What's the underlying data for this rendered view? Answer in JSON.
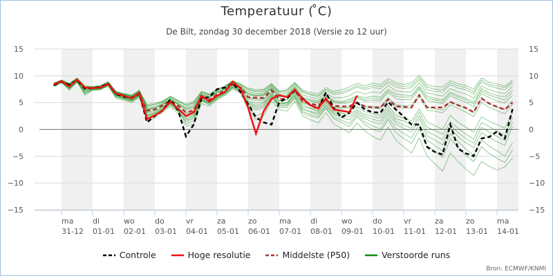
{
  "title": "Temperatuur ( ̊C)",
  "subtitle": "De Bilt, zondag 30 december 2018 (Versie zo 12 uur)",
  "source": "Bron: ECMWF/KNMI",
  "colors": {
    "controle": "#000000",
    "hoge_resolutie": "#ee1111",
    "middelste": "#aa3333",
    "verstoorde": "#118811",
    "band": "#f0f0f0",
    "grid": "#d8d8d8",
    "zero": "#777777"
  },
  "chart_data": {
    "type": "line",
    "title": "Temperatuur ( ̊C)",
    "ylim": [
      -15,
      15
    ],
    "yticks": [
      "15",
      "10",
      "5",
      "0",
      "−5",
      "−10",
      "−15"
    ],
    "ytick_values": [
      15,
      10,
      5,
      0,
      -5,
      -10,
      -15
    ],
    "x_step_hours": 6,
    "x_start": "30-12 18 uur",
    "days": [
      {
        "day": "ma",
        "date": "31-12"
      },
      {
        "day": "di",
        "date": "01-01"
      },
      {
        "day": "wo",
        "date": "02-01"
      },
      {
        "day": "do",
        "date": "03-01"
      },
      {
        "day": "vr",
        "date": "04-01"
      },
      {
        "day": "za",
        "date": "05-01"
      },
      {
        "day": "zo",
        "date": "06-01"
      },
      {
        "day": "ma",
        "date": "07-01"
      },
      {
        "day": "di",
        "date": "08-01"
      },
      {
        "day": "wo",
        "date": "09-01"
      },
      {
        "day": "do",
        "date": "10-01"
      },
      {
        "day": "vr",
        "date": "11-01"
      },
      {
        "day": "za",
        "date": "12-01"
      },
      {
        "day": "zo",
        "date": "13-01"
      },
      {
        "day": "ma",
        "date": "14-01"
      }
    ],
    "legend": [
      {
        "key": "controle",
        "label": "Controle",
        "style": "dashed"
      },
      {
        "key": "hoge_resolutie",
        "label": "Hoge resolutie",
        "style": "solid"
      },
      {
        "key": "middelste",
        "label": "Middelste (P50)",
        "style": "dashed"
      },
      {
        "key": "verstoorde",
        "label": "Verstoorde runs",
        "style": "solid"
      }
    ],
    "series": {
      "hoge_resolutie": [
        8.4,
        9.0,
        8.0,
        9.3,
        7.8,
        7.7,
        7.8,
        8.5,
        6.7,
        6.3,
        5.8,
        6.8,
        1.9,
        2.6,
        3.5,
        5.2,
        3.8,
        2.5,
        3.2,
        6.3,
        5.2,
        6.3,
        7.0,
        8.9,
        7.7,
        4.0,
        -0.8,
        3.4,
        5.7,
        6.4,
        6.0,
        7.4,
        5.7,
        4.5,
        3.9,
        5.8,
        3.7,
        3.5,
        3.2,
        6.3
      ],
      "controle": [
        8.2,
        8.9,
        8.3,
        9.2,
        7.6,
        7.7,
        7.9,
        8.6,
        6.6,
        6.1,
        5.9,
        6.7,
        1.3,
        2.5,
        3.5,
        5.6,
        3.5,
        -1.3,
        0.9,
        5.8,
        6.0,
        7.5,
        7.8,
        8.6,
        7.0,
        4.7,
        2.2,
        1.3,
        0.9,
        5.1,
        5.8,
        7.3,
        5.8,
        4.5,
        3.8,
        6.9,
        4.0,
        2.2,
        3.1,
        5.0,
        3.7,
        3.2,
        3.1,
        5.1,
        3.7,
        2.4,
        0.9,
        0.9,
        -3.3,
        -4.2,
        -4.7,
        0.9,
        -3.6,
        -4.5,
        -5.0,
        -1.7,
        -1.4,
        -0.4,
        -1.7,
        3.8
      ],
      "middelste": [
        8.3,
        9.0,
        8.2,
        9.2,
        7.7,
        7.7,
        7.9,
        8.5,
        6.6,
        6.2,
        5.8,
        6.6,
        3.5,
        3.7,
        4.5,
        5.3,
        4.4,
        3.2,
        3.5,
        6.0,
        5.5,
        6.5,
        7.2,
        8.4,
        7.8,
        6.0,
        5.9,
        5.9,
        7.3,
        5.6,
        5.8,
        7.3,
        5.2,
        4.8,
        4.5,
        5.6,
        4.4,
        4.3,
        4.3,
        5.0,
        4.3,
        4.1,
        4.1,
        5.6,
        4.3,
        4.2,
        4.1,
        6.4,
        4.1,
        4.1,
        4.1,
        5.1,
        4.5,
        4.0,
        3.2,
        5.8,
        4.8,
        4.2,
        3.7,
        5.0
      ],
      "verstoorde": [
        [
          8.5,
          9.1,
          8.4,
          9.5,
          7.9,
          7.8,
          8.0,
          8.7,
          6.9,
          6.5,
          6.1,
          7.1,
          3.8,
          4.1,
          4.8,
          5.7,
          4.8,
          3.9,
          4.3,
          6.6,
          6.0,
          7.0,
          7.6,
          8.8,
          8.0,
          6.8,
          6.4,
          6.6,
          7.9,
          6.2,
          6.5,
          8.0,
          6.0,
          5.6,
          5.3,
          6.5,
          5.4,
          5.2,
          5.6,
          6.3,
          5.9,
          6.2,
          6.0,
          7.5,
          6.6,
          6.4,
          6.3,
          8.1,
          6.2,
          5.8,
          5.5,
          7.0,
          6.3,
          5.8,
          5.1,
          7.6,
          6.8,
          6.3,
          6.1,
          7.4
        ],
        [
          8.1,
          8.8,
          7.7,
          9.0,
          7.2,
          7.5,
          7.6,
          8.3,
          6.3,
          5.9,
          5.5,
          6.4,
          2.8,
          3.1,
          4.0,
          4.9,
          3.9,
          2.4,
          3.0,
          5.6,
          5.0,
          6.1,
          6.8,
          8.0,
          7.4,
          5.3,
          4.9,
          5.1,
          6.7,
          4.9,
          5.0,
          6.6,
          4.2,
          3.9,
          3.5,
          4.9,
          3.3,
          3.0,
          2.8,
          3.7,
          2.8,
          2.4,
          2.1,
          3.9,
          2.0,
          1.5,
          0.9,
          3.2,
          0.4,
          -0.2,
          -0.9,
          1.4,
          0.2,
          -0.9,
          -1.8,
          1.3,
          0.5,
          -0.3,
          -1.1,
          2.2
        ],
        [
          8.6,
          9.2,
          8.5,
          9.4,
          8.0,
          7.9,
          8.1,
          8.8,
          7.0,
          6.6,
          6.3,
          7.2,
          4.3,
          4.6,
          5.1,
          6.0,
          5.2,
          4.4,
          4.9,
          6.9,
          6.4,
          7.3,
          7.9,
          9.0,
          8.3,
          7.4,
          7.0,
          7.1,
          8.3,
          6.8,
          7.1,
          8.5,
          6.9,
          6.4,
          6.1,
          7.3,
          6.5,
          6.7,
          7.2,
          7.9,
          7.4,
          7.8,
          7.6,
          8.7,
          7.9,
          7.6,
          7.8,
          9.3,
          7.4,
          7.1,
          7.0,
          8.3,
          7.7,
          7.4,
          6.6,
          8.8,
          8.1,
          7.7,
          7.4,
          8.6
        ],
        [
          8.0,
          8.7,
          7.5,
          8.8,
          6.6,
          7.3,
          7.4,
          8.2,
          6.0,
          5.6,
          5.2,
          6.1,
          2.2,
          2.5,
          3.5,
          4.5,
          3.3,
          1.4,
          2.1,
          5.3,
          4.6,
          5.7,
          6.5,
          7.7,
          7.0,
          4.5,
          3.6,
          4.0,
          6.0,
          4.1,
          4.1,
          5.8,
          3.0,
          2.5,
          2.1,
          3.9,
          2.0,
          1.3,
          0.5,
          2.4,
          0.9,
          0.0,
          -0.4,
          1.8,
          -0.6,
          -1.7,
          -2.6,
          0.0,
          -3.0,
          -4.1,
          -5.2,
          -1.8,
          -3.4,
          -4.9,
          -6.0,
          -3.2,
          -4.5,
          -5.4,
          -6.2,
          -3.8
        ],
        [
          8.3,
          9.0,
          8.1,
          9.1,
          7.5,
          7.6,
          7.7,
          8.4,
          6.5,
          6.0,
          5.7,
          6.5,
          3.1,
          3.3,
          4.2,
          5.1,
          4.0,
          2.9,
          3.2,
          5.8,
          5.3,
          6.3,
          7.0,
          8.2,
          7.6,
          5.7,
          5.4,
          5.5,
          7.0,
          5.3,
          5.5,
          7.0,
          4.9,
          4.4,
          4.1,
          5.3,
          4.0,
          3.9,
          4.0,
          4.8,
          4.0,
          4.0,
          3.8,
          5.5,
          4.2,
          4.0,
          4.0,
          6.1,
          3.6,
          3.4,
          3.1,
          4.6,
          3.9,
          3.2,
          2.4,
          5.0,
          4.1,
          3.5,
          2.9,
          4.7
        ],
        [
          8.4,
          9.1,
          8.3,
          9.3,
          7.8,
          7.8,
          7.9,
          8.6,
          6.8,
          6.4,
          6.0,
          6.9,
          3.6,
          3.9,
          4.6,
          5.5,
          4.6,
          3.6,
          3.9,
          6.3,
          5.8,
          6.8,
          7.4,
          8.6,
          7.9,
          6.4,
          6.2,
          6.3,
          7.6,
          6.0,
          6.2,
          7.7,
          5.6,
          5.2,
          4.9,
          6.1,
          5.0,
          4.8,
          5.0,
          5.9,
          5.2,
          5.4,
          5.3,
          6.9,
          5.8,
          5.5,
          5.6,
          7.5,
          5.4,
          5.1,
          4.8,
          6.3,
          5.6,
          5.1,
          4.2,
          6.7,
          5.9,
          5.3,
          4.9,
          6.4
        ],
        [
          8.2,
          8.9,
          7.9,
          9.1,
          7.1,
          7.6,
          7.6,
          8.3,
          6.4,
          5.8,
          5.4,
          6.3,
          2.5,
          2.9,
          3.8,
          4.8,
          3.6,
          1.9,
          2.6,
          5.5,
          4.9,
          5.9,
          6.7,
          7.9,
          7.2,
          4.9,
          4.2,
          4.6,
          6.4,
          4.5,
          4.6,
          6.2,
          3.7,
          3.2,
          2.8,
          4.4,
          2.8,
          2.2,
          1.8,
          3.1,
          2.0,
          1.4,
          1.0,
          2.9,
          1.0,
          0.2,
          -0.5,
          2.0,
          -1.2,
          -2.0,
          -2.9,
          0.2,
          -1.4,
          -2.5,
          -3.4,
          -0.6,
          -1.5,
          -2.3,
          -3.0,
          0.6
        ],
        [
          8.5,
          9.1,
          8.4,
          9.4,
          7.9,
          7.9,
          8.0,
          8.7,
          6.9,
          6.5,
          6.2,
          7.0,
          4.0,
          4.3,
          5.0,
          5.8,
          4.9,
          4.1,
          4.6,
          6.7,
          6.2,
          7.1,
          7.7,
          8.9,
          8.1,
          7.1,
          6.7,
          6.8,
          8.1,
          6.5,
          6.8,
          8.2,
          6.4,
          6.0,
          5.7,
          6.9,
          5.9,
          5.9,
          6.3,
          7.1,
          6.6,
          7.0,
          6.8,
          8.2,
          7.2,
          7.0,
          7.0,
          8.7,
          6.8,
          6.5,
          6.2,
          7.6,
          7.0,
          6.6,
          5.8,
          8.1,
          7.4,
          6.9,
          6.7,
          8.0
        ],
        [
          8.3,
          8.9,
          8.0,
          9.2,
          7.4,
          7.6,
          7.7,
          8.4,
          6.4,
          6.0,
          5.6,
          6.5,
          2.0,
          2.7,
          3.7,
          5.0,
          3.7,
          1.0,
          1.6,
          5.4,
          5.1,
          6.4,
          7.1,
          8.3,
          7.5,
          4.4,
          2.5,
          3.1,
          5.9,
          4.7,
          5.0,
          6.9,
          4.6,
          4.0,
          3.3,
          5.2,
          3.6,
          3.2,
          3.3,
          4.2,
          3.3,
          2.9,
          2.6,
          4.4,
          2.6,
          2.1,
          1.6,
          3.8,
          1.4,
          0.7,
          0.0,
          2.6,
          1.3,
          0.4,
          -0.5,
          2.4,
          1.5,
          0.9,
          0.2,
          3.2
        ],
        [
          8.6,
          9.2,
          8.6,
          9.6,
          8.1,
          8.0,
          8.2,
          8.9,
          7.1,
          6.7,
          6.4,
          7.3,
          4.6,
          4.9,
          5.3,
          6.2,
          5.4,
          4.7,
          5.2,
          7.1,
          6.6,
          7.5,
          8.1,
          9.1,
          8.5,
          7.7,
          7.4,
          7.5,
          8.6,
          7.1,
          7.5,
          8.8,
          7.3,
          6.9,
          6.6,
          7.8,
          7.1,
          7.4,
          7.9,
          8.6,
          8.1,
          8.6,
          8.4,
          9.5,
          8.7,
          8.4,
          8.7,
          10.1,
          8.3,
          8.0,
          7.9,
          9.1,
          8.5,
          8.2,
          7.5,
          9.6,
          8.8,
          8.5,
          8.1,
          9.2
        ],
        [
          8.2,
          8.8,
          7.6,
          8.9,
          6.8,
          7.4,
          7.5,
          8.2,
          6.1,
          5.7,
          5.3,
          6.2,
          2.4,
          2.7,
          3.6,
          4.7,
          3.4,
          1.7,
          2.3,
          5.4,
          4.7,
          5.8,
          6.6,
          7.8,
          7.1,
          4.7,
          3.9,
          4.3,
          6.2,
          4.3,
          4.4,
          6.0,
          3.3,
          2.8,
          2.4,
          4.1,
          2.3,
          1.7,
          1.1,
          2.7,
          1.4,
          0.6,
          0.1,
          2.3,
          0.2,
          -0.8,
          -1.6,
          1.0,
          -2.0,
          -3.0,
          -4.0,
          -0.8,
          -2.3,
          -3.7,
          -4.8,
          -2.0,
          -3.1,
          -4.0,
          -5.0,
          -2.5
        ],
        [
          8.4,
          9.0,
          8.2,
          9.2,
          7.6,
          7.7,
          7.8,
          8.5,
          6.6,
          6.1,
          5.8,
          6.7,
          3.3,
          3.5,
          4.3,
          5.2,
          4.2,
          3.1,
          3.4,
          5.9,
          5.4,
          6.4,
          7.1,
          8.3,
          7.7,
          5.9,
          5.7,
          5.7,
          7.1,
          5.4,
          5.6,
          7.1,
          5.1,
          4.6,
          4.3,
          5.5,
          4.2,
          4.1,
          4.2,
          5.0,
          4.3,
          4.3,
          4.2,
          5.9,
          4.6,
          4.4,
          4.5,
          6.6,
          4.2,
          3.9,
          3.6,
          5.2,
          4.5,
          3.9,
          3.1,
          5.7,
          4.8,
          4.2,
          3.7,
          5.4
        ],
        [
          8.1,
          8.8,
          7.3,
          8.9,
          6.4,
          7.3,
          7.4,
          8.1,
          5.8,
          5.4,
          5.0,
          5.9,
          1.6,
          2.1,
          3.2,
          4.3,
          2.9,
          0.6,
          1.0,
          4.8,
          4.3,
          5.5,
          6.3,
          7.5,
          6.7,
          3.9,
          1.8,
          2.6,
          5.3,
          3.7,
          3.4,
          5.3,
          2.5,
          1.8,
          1.2,
          3.1,
          1.0,
          0.2,
          -0.6,
          1.2,
          -0.3,
          -1.3,
          -2.0,
          0.4,
          -2.0,
          -3.3,
          -4.4,
          -1.6,
          -5.0,
          -6.4,
          -7.8,
          -4.4,
          -6.0,
          -7.4,
          -8.6,
          -6.0,
          -6.9,
          -7.6,
          -7.0,
          -5.3
        ],
        [
          8.5,
          9.1,
          8.3,
          9.4,
          7.8,
          7.8,
          7.9,
          8.6,
          6.8,
          6.3,
          6.0,
          6.8,
          3.7,
          4.0,
          4.7,
          5.6,
          4.7,
          3.8,
          4.1,
          6.4,
          6.0,
          6.9,
          7.5,
          8.7,
          7.9,
          6.6,
          6.3,
          6.4,
          7.7,
          6.1,
          6.3,
          7.8,
          5.8,
          5.4,
          5.1,
          6.3,
          5.2,
          5.0,
          5.3,
          6.1,
          5.5,
          5.8,
          5.6,
          7.2,
          6.2,
          6.0,
          6.0,
          7.8,
          5.8,
          5.5,
          5.2,
          6.7,
          6.0,
          5.5,
          4.7,
          7.2,
          6.4,
          5.9,
          5.5,
          7.0
        ],
        [
          8.3,
          8.9,
          7.8,
          9.0,
          7.0,
          7.5,
          7.6,
          8.3,
          6.2,
          5.8,
          5.4,
          6.3,
          2.6,
          3.0,
          3.9,
          4.9,
          3.8,
          2.2,
          2.8,
          5.6,
          5.0,
          6.0,
          6.8,
          8.0,
          7.3,
          5.1,
          4.5,
          4.9,
          6.6,
          4.7,
          4.8,
          6.4,
          3.9,
          3.4,
          3.0,
          4.6,
          3.0,
          2.6,
          2.3,
          3.4,
          2.4,
          1.9,
          1.5,
          3.4,
          1.5,
          0.8,
          0.2,
          2.6,
          -0.4,
          -1.1,
          -1.9,
          0.8,
          -0.6,
          -1.7,
          -2.6,
          0.4,
          -0.5,
          -1.3,
          -2.1,
          1.4
        ],
        [
          8.6,
          9.2,
          8.5,
          9.5,
          8.0,
          7.9,
          8.1,
          8.8,
          7.0,
          6.6,
          6.3,
          7.2,
          4.4,
          4.7,
          5.2,
          6.1,
          5.3,
          4.5,
          5.0,
          7.0,
          6.5,
          7.4,
          8.0,
          9.0,
          8.4,
          7.5,
          7.2,
          7.3,
          8.4,
          7.0,
          7.3,
          8.6,
          7.1,
          6.6,
          6.3,
          7.5,
          6.8,
          7.0,
          7.5,
          8.2,
          7.7,
          8.2,
          8.0,
          9.1,
          8.3,
          8.0,
          8.2,
          9.7,
          7.9,
          7.5,
          7.4,
          8.7,
          8.1,
          7.8,
          7.0,
          9.2,
          8.4,
          8.1,
          7.8,
          8.9
        ]
      ]
    }
  }
}
